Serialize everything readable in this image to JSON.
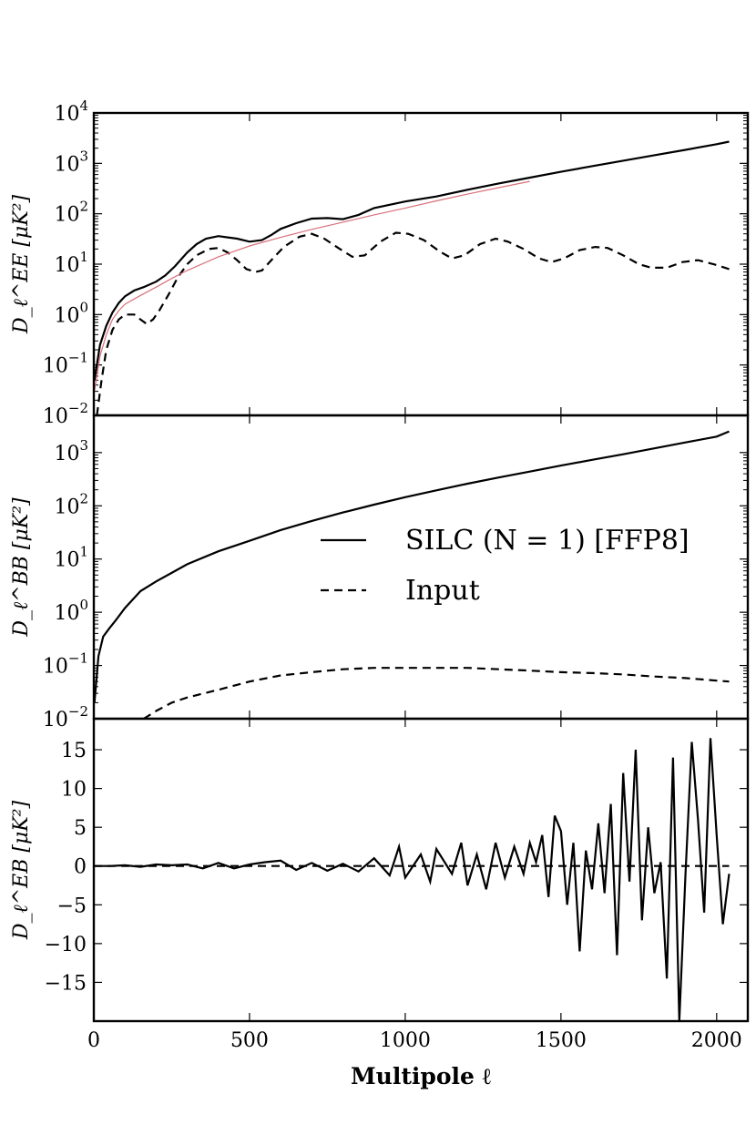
{
  "figure": {
    "legend": {
      "items": [
        {
          "label": "SILC (N = 1) [FFP8]",
          "style": "solid",
          "color": "#000000"
        },
        {
          "label": "Input",
          "style": "dashed",
          "color": "#000000"
        }
      ],
      "placement": "middle panel, right"
    },
    "xlabel": "Multipole ℓ",
    "colors": {
      "silc": "#000000",
      "input": "#000000",
      "reference": "#d9707a"
    }
  },
  "chart_data": [
    {
      "type": "line",
      "panel": "EE",
      "ylabel": "D_ℓ^EE [μK²]",
      "yscale": "log",
      "xlim": [
        0,
        2100
      ],
      "ylim": [
        0.01,
        10000
      ],
      "xticks": [
        0,
        500,
        1000,
        1500,
        2000
      ],
      "ytick_labels": [
        "10−2",
        "10−1",
        "100",
        "101",
        "102",
        "103",
        "104"
      ],
      "series": [
        {
          "name": "SILC (N = 1) [FFP8]",
          "style": "solid",
          "color": "#000000",
          "x": [
            2,
            20,
            40,
            60,
            80,
            100,
            130,
            160,
            200,
            230,
            260,
            300,
            330,
            360,
            400,
            430,
            460,
            500,
            540,
            570,
            600,
            650,
            700,
            750,
            800,
            850,
            900,
            1000,
            1100,
            1200,
            1300,
            1400,
            1500,
            1600,
            1700,
            1800,
            1900,
            2000,
            2040
          ],
          "y": [
            0.05,
            0.25,
            0.6,
            1.1,
            1.7,
            2.3,
            3.0,
            3.5,
            4.5,
            6.0,
            9.0,
            17,
            25,
            32,
            36,
            34,
            32,
            28,
            30,
            38,
            50,
            65,
            80,
            82,
            78,
            95,
            130,
            175,
            220,
            300,
            400,
            520,
            680,
            880,
            1130,
            1450,
            1850,
            2400,
            2700
          ]
        },
        {
          "name": "Input",
          "style": "dashed",
          "color": "#000000",
          "x": [
            10,
            25,
            40,
            60,
            80,
            100,
            130,
            150,
            170,
            190,
            210,
            240,
            270,
            300,
            330,
            370,
            400,
            430,
            460,
            490,
            520,
            540,
            570,
            610,
            660,
            700,
            740,
            790,
            830,
            870,
            920,
            970,
            1010,
            1060,
            1110,
            1150,
            1190,
            1240,
            1290,
            1330,
            1380,
            1430,
            1470,
            1510,
            1560,
            1610,
            1650,
            1700,
            1750,
            1790,
            1840,
            1890,
            1940,
            1990,
            2040
          ],
          "y": [
            0.01,
            0.05,
            0.2,
            0.5,
            0.8,
            1.0,
            1.0,
            0.8,
            0.65,
            0.8,
            1.2,
            2.5,
            5.5,
            10,
            15,
            20,
            21,
            17,
            12,
            8,
            7,
            7.5,
            12,
            22,
            35,
            40,
            32,
            20,
            14,
            15,
            28,
            42,
            40,
            30,
            18,
            13,
            15,
            25,
            32,
            28,
            20,
            13,
            11,
            13,
            19,
            22,
            21,
            15,
            10,
            8.5,
            8.5,
            11,
            12,
            10,
            8
          ]
        },
        {
          "name": "",
          "style": "solid",
          "color": "#d9707a",
          "x": [
            2,
            20,
            40,
            60,
            80,
            100,
            150,
            200,
            250,
            300,
            400,
            500,
            600,
            700,
            800,
            900,
            1000,
            1100,
            1200,
            1300,
            1400
          ],
          "y": [
            0.03,
            0.15,
            0.4,
            0.8,
            1.2,
            1.6,
            2.4,
            3.5,
            5.2,
            7.5,
            14,
            23,
            34,
            49,
            68,
            95,
            130,
            180,
            245,
            330,
            440
          ]
        }
      ]
    },
    {
      "type": "line",
      "panel": "BB",
      "ylabel": "D_ℓ^BB [μK²]",
      "yscale": "log",
      "xlim": [
        0,
        2100
      ],
      "ylim": [
        0.01,
        5000
      ],
      "ytick_labels": [
        "10−2",
        "10−1",
        "100",
        "101",
        "102",
        "103"
      ],
      "series": [
        {
          "name": "SILC (N = 1) [FFP8]",
          "style": "solid",
          "color": "#000000",
          "x": [
            2,
            15,
            30,
            50,
            70,
            100,
            150,
            200,
            250,
            300,
            400,
            500,
            600,
            700,
            800,
            900,
            1000,
            1100,
            1200,
            1300,
            1400,
            1500,
            1600,
            1700,
            1800,
            1900,
            2000,
            2040
          ],
          "y": [
            0.02,
            0.15,
            0.35,
            0.5,
            0.7,
            1.2,
            2.5,
            3.8,
            5.5,
            8,
            14,
            22,
            35,
            52,
            75,
            105,
            145,
            195,
            260,
            340,
            440,
            570,
            730,
            930,
            1200,
            1550,
            2000,
            2500
          ]
        },
        {
          "name": "Input",
          "style": "dashed",
          "color": "#000000",
          "x": [
            160,
            200,
            250,
            300,
            400,
            500,
            600,
            700,
            800,
            900,
            1000,
            1100,
            1200,
            1300,
            1400,
            1500,
            1600,
            1700,
            1800,
            1900,
            2000,
            2040
          ],
          "y": [
            0.01,
            0.014,
            0.02,
            0.025,
            0.035,
            0.05,
            0.065,
            0.075,
            0.085,
            0.09,
            0.09,
            0.09,
            0.09,
            0.085,
            0.08,
            0.075,
            0.072,
            0.068,
            0.062,
            0.058,
            0.052,
            0.05
          ]
        }
      ]
    },
    {
      "type": "line",
      "panel": "EB",
      "ylabel": "D_ℓ^EB [μK²]",
      "yscale": "linear",
      "xlim": [
        0,
        2100
      ],
      "ylim": [
        -20,
        19
      ],
      "yticks": [
        -15,
        -10,
        -5,
        0,
        5,
        10,
        15
      ],
      "series": [
        {
          "name": "SILC (N = 1) [FFP8]",
          "style": "solid",
          "color": "#000000",
          "x": [
            0,
            50,
            100,
            150,
            200,
            250,
            300,
            350,
            400,
            450,
            500,
            550,
            600,
            650,
            700,
            750,
            800,
            850,
            900,
            950,
            980,
            1000,
            1050,
            1080,
            1100,
            1150,
            1180,
            1200,
            1230,
            1260,
            1290,
            1320,
            1350,
            1380,
            1400,
            1420,
            1440,
            1460,
            1480,
            1500,
            1520,
            1540,
            1560,
            1580,
            1600,
            1620,
            1640,
            1660,
            1680,
            1700,
            1720,
            1740,
            1760,
            1780,
            1800,
            1820,
            1840,
            1860,
            1880,
            1900,
            1920,
            1940,
            1960,
            1980,
            2000,
            2020,
            2040
          ],
          "y": [
            0,
            0,
            0.1,
            -0.1,
            0.2,
            0.1,
            0.2,
            -0.3,
            0.4,
            -0.3,
            0.2,
            0.5,
            0.7,
            -0.5,
            0.4,
            -0.6,
            0.3,
            -0.7,
            1.0,
            -1.2,
            2.5,
            -1.5,
            1.5,
            -2.0,
            2.2,
            -1.0,
            3.0,
            -2.5,
            1.5,
            -3.0,
            3.0,
            -1.5,
            2.5,
            -1.0,
            3.0,
            0.5,
            4.0,
            -4.0,
            6.5,
            4.5,
            -5.0,
            3.0,
            -11.0,
            2.0,
            -3.0,
            5.5,
            -3.5,
            8.0,
            -11.5,
            12.0,
            -2.0,
            15.0,
            -7.0,
            5.0,
            -3.5,
            0.5,
            -14.5,
            14.0,
            -20.0,
            -1.0,
            16.0,
            6.0,
            -6.0,
            16.5,
            4.0,
            -7.5,
            -1.0
          ]
        },
        {
          "name": "Input",
          "style": "dashed",
          "color": "#000000",
          "x": [
            0,
            2040
          ],
          "y": [
            0,
            0
          ]
        }
      ]
    }
  ]
}
